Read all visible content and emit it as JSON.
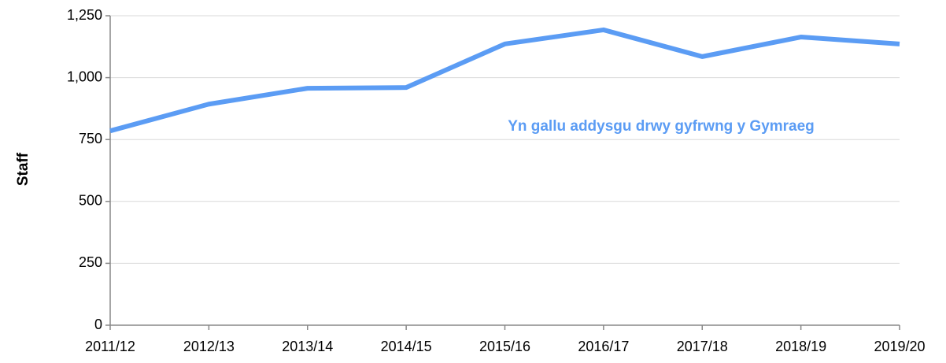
{
  "chart_data": {
    "type": "line",
    "y_label": "Staff",
    "annotation": "Yn gallu addysgu drwy gyfrwng y Gymraeg",
    "categories": [
      "2011/12",
      "2012/13",
      "2013/14",
      "2014/15",
      "2015/16",
      "2016/17",
      "2017/18",
      "2018/19",
      "2019/20"
    ],
    "series": [
      {
        "name": "Yn gallu addysgu drwy gyfrwng y Gymraeg",
        "color": "#5b9cf4",
        "values": [
          785,
          893,
          957,
          960,
          1136,
          1193,
          1085,
          1164,
          1136
        ]
      }
    ],
    "ylim": [
      0,
      1250
    ],
    "yticks": [
      0,
      250,
      500,
      750,
      {
        "value": 1000,
        "label": "1,000"
      },
      {
        "value": 1250,
        "label": "1,250"
      }
    ],
    "grid": true
  }
}
